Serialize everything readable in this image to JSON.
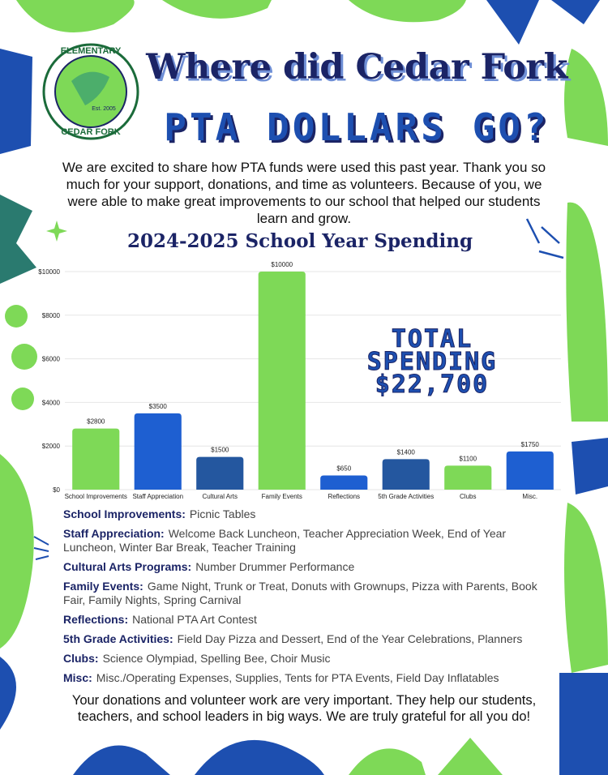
{
  "header": {
    "title_line1": "Where did Cedar Fork",
    "title_line2": "PTA DOLLARS GO?",
    "logo": {
      "top_text": "ELEMENTARY",
      "bottom_text": "CEDAR FORK",
      "established": "Est. 2005"
    }
  },
  "intro": "We are excited to share how PTA funds were used this past year. Thank you so much for your support, donations, and time as volunteers. Because of you, we were able to make great improvements to our school that helped our students learn and grow.",
  "chart_data": {
    "type": "bar",
    "title": "2024-2025 School Year Spending",
    "categories": [
      "School Improvements",
      "Staff Appreciation",
      "Cultural Arts",
      "Family Events",
      "Reflections",
      "5th Grade Activities",
      "Clubs",
      "Misc."
    ],
    "values": [
      2800,
      3500,
      1500,
      10000,
      650,
      1400,
      1100,
      1750
    ],
    "value_labels": [
      "$2800",
      "$3500",
      "$1500",
      "$10000",
      "$650",
      "$1400",
      "$1100",
      "$1750"
    ],
    "colors": [
      "#7ed957",
      "#1e5fd1",
      "#24579f",
      "#7ed957",
      "#1e5fd1",
      "#24579f",
      "#7ed957",
      "#1e5fd1"
    ],
    "ylim": [
      0,
      10000
    ],
    "yticks": [
      {
        "value": 0,
        "label": "$0"
      },
      {
        "value": 2000,
        "label": "$2000"
      },
      {
        "value": 4000,
        "label": "$4000"
      },
      {
        "value": 6000,
        "label": "$6000"
      },
      {
        "value": 8000,
        "label": "$8000"
      },
      {
        "value": 10000,
        "label": "$10000"
      }
    ],
    "grid": true,
    "annotation": [
      "TOTAL",
      "SPENDING",
      "$22,700"
    ]
  },
  "details": [
    {
      "label": "School Improvements:",
      "text": "Picnic Tables"
    },
    {
      "label": "Staff Appreciation:",
      "text": "Welcome Back Luncheon, Teacher Appreciation Week, End of Year Luncheon, Winter Bar Break, Teacher Training"
    },
    {
      "label": "Cultural Arts Programs:",
      "text": "Number Drummer Performance"
    },
    {
      "label": "Family Events:",
      "text": "Game Night, Trunk or Treat, Donuts with Grownups, Pizza with Parents, Book Fair, Family Nights, Spring Carnival"
    },
    {
      "label": "Reflections:",
      "text": "National PTA Art Contest"
    },
    {
      "label": "5th Grade Activities:",
      "text": "Field Day Pizza and Dessert, End of the Year Celebrations, Planners"
    },
    {
      "label": "Clubs:",
      "text": "Science Olympiad, Spelling Bee, Choir Music"
    },
    {
      "label": "Misc:",
      "text": "Misc./Operating Expenses, Supplies, Tents for PTA Events, Field Day Inflatables"
    }
  ],
  "closing": "Your donations and volunteer work are very important. They help our students, teachers, and school leaders in big ways. We are truly grateful for all you do!"
}
